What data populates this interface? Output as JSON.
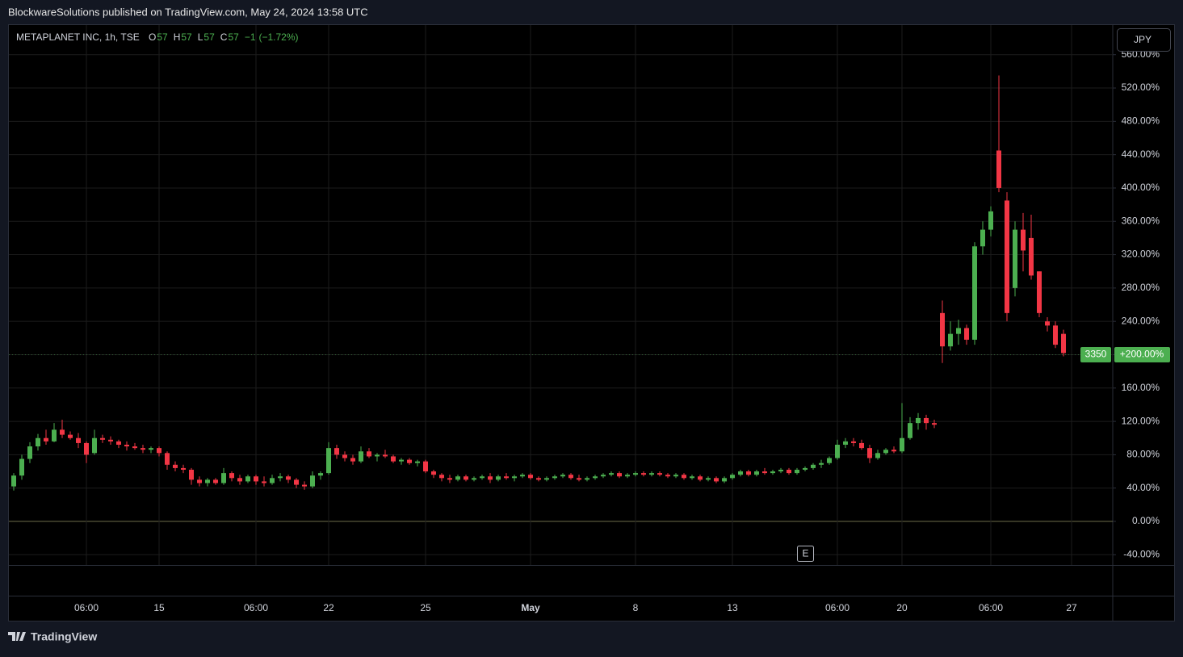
{
  "header": {
    "publisher": "BlockwareSolutions published on TradingView.com, May 24, 2024 13:58 UTC"
  },
  "chart_data": {
    "type": "candlestick",
    "symbol": "METAPLANET INC, 1h, TSE",
    "ohlc_legend": [
      {
        "label": "O",
        "value": 57
      },
      {
        "label": "H",
        "value": 57
      },
      {
        "label": "L",
        "value": 57
      },
      {
        "label": "C",
        "value": 57
      }
    ],
    "change": {
      "value": -1,
      "label": "−1"
    },
    "change_pct": {
      "value": -1.72,
      "label": "(−1.72%)"
    },
    "currency": "JPY",
    "earnings_marker": "E",
    "last_price": 3350,
    "last_change": {
      "value": 200,
      "label": "+200.00%"
    },
    "up_color": "#4caf50",
    "down_color": "#f23645",
    "grid": true,
    "ylim": [
      -52,
      567
    ],
    "yticks": [
      {
        "value": -40,
        "label": "-40.00%"
      },
      {
        "value": 0,
        "label": "0.00%"
      },
      {
        "value": 40,
        "label": "40.00%"
      },
      {
        "value": 80,
        "label": "80.00%"
      },
      {
        "value": 120,
        "label": "120.00%"
      },
      {
        "value": 160,
        "label": "160.00%"
      },
      {
        "value": 200,
        "label": "200.00%"
      },
      {
        "value": 240,
        "label": "240.00%"
      },
      {
        "value": 280,
        "label": "280.00%"
      },
      {
        "value": 320,
        "label": "320.00%"
      },
      {
        "value": 360,
        "label": "360.00%"
      },
      {
        "value": 400,
        "label": "400.00%"
      },
      {
        "value": 440,
        "label": "440.00%"
      },
      {
        "value": 480,
        "label": "480.00%"
      },
      {
        "value": 520,
        "label": "520.00%"
      },
      {
        "value": 560,
        "label": "560.00%"
      }
    ],
    "categories": [
      null,
      null,
      null,
      null,
      null,
      null,
      null,
      null,
      null,
      "06:00",
      null,
      null,
      null,
      null,
      null,
      null,
      null,
      null,
      "15",
      null,
      null,
      null,
      null,
      null,
      null,
      null,
      null,
      null,
      null,
      null,
      "06:00",
      null,
      null,
      null,
      null,
      null,
      null,
      null,
      null,
      "22",
      null,
      null,
      null,
      null,
      null,
      null,
      null,
      null,
      null,
      null,
      null,
      "25",
      null,
      null,
      null,
      null,
      null,
      null,
      null,
      null,
      null,
      null,
      null,
      null,
      "May",
      null,
      null,
      null,
      null,
      null,
      null,
      null,
      null,
      null,
      null,
      null,
      null,
      "8",
      null,
      null,
      null,
      null,
      null,
      null,
      null,
      null,
      null,
      null,
      null,
      "13",
      null,
      null,
      null,
      null,
      null,
      null,
      null,
      null,
      null,
      null,
      null,
      null,
      "06:00",
      null,
      null,
      null,
      null,
      null,
      null,
      null,
      "20",
      null,
      null,
      null,
      null,
      null,
      null,
      null,
      null,
      null,
      null,
      "06:00",
      null,
      null,
      null,
      null,
      null,
      null,
      null,
      null,
      null,
      "27"
    ],
    "ohlc": [
      [
        42,
        58,
        37,
        55
      ],
      [
        55,
        80,
        50,
        75
      ],
      [
        75,
        95,
        70,
        90
      ],
      [
        90,
        105,
        85,
        100
      ],
      [
        100,
        110,
        92,
        96
      ],
      [
        96,
        118,
        95,
        110
      ],
      [
        110,
        122,
        100,
        104
      ],
      [
        104,
        108,
        98,
        100
      ],
      [
        100,
        106,
        88,
        94
      ],
      [
        94,
        96,
        70,
        80
      ],
      [
        82,
        110,
        80,
        100
      ],
      [
        100,
        104,
        94,
        98
      ],
      [
        98,
        102,
        92,
        96
      ],
      [
        96,
        98,
        88,
        92
      ],
      [
        92,
        96,
        85,
        90
      ],
      [
        90,
        94,
        86,
        88
      ],
      [
        88,
        92,
        82,
        86
      ],
      [
        86,
        90,
        82,
        88
      ],
      [
        88,
        90,
        78,
        82
      ],
      [
        82,
        84,
        62,
        68
      ],
      [
        68,
        72,
        60,
        64
      ],
      [
        64,
        68,
        58,
        62
      ],
      [
        62,
        64,
        44,
        50
      ],
      [
        50,
        54,
        42,
        46
      ],
      [
        46,
        52,
        42,
        50
      ],
      [
        50,
        52,
        44,
        46
      ],
      [
        46,
        64,
        44,
        58
      ],
      [
        58,
        60,
        48,
        52
      ],
      [
        52,
        56,
        44,
        48
      ],
      [
        48,
        56,
        46,
        54
      ],
      [
        54,
        56,
        44,
        48
      ],
      [
        48,
        54,
        42,
        46
      ],
      [
        46,
        56,
        44,
        52
      ],
      [
        52,
        58,
        48,
        54
      ],
      [
        54,
        56,
        46,
        50
      ],
      [
        50,
        52,
        40,
        44
      ],
      [
        44,
        48,
        38,
        42
      ],
      [
        42,
        60,
        40,
        55
      ],
      [
        55,
        60,
        50,
        58
      ],
      [
        58,
        95,
        56,
        88
      ],
      [
        88,
        92,
        75,
        80
      ],
      [
        80,
        84,
        72,
        76
      ],
      [
        76,
        80,
        68,
        72
      ],
      [
        72,
        90,
        70,
        84
      ],
      [
        84,
        88,
        76,
        78
      ],
      [
        78,
        82,
        72,
        80
      ],
      [
        80,
        86,
        76,
        78
      ],
      [
        78,
        80,
        70,
        72
      ],
      [
        72,
        76,
        68,
        74
      ],
      [
        74,
        76,
        68,
        70
      ],
      [
        70,
        74,
        66,
        72
      ],
      [
        72,
        74,
        58,
        60
      ],
      [
        60,
        62,
        52,
        56
      ],
      [
        56,
        58,
        48,
        52
      ],
      [
        52,
        56,
        46,
        50
      ],
      [
        50,
        56,
        48,
        54
      ],
      [
        54,
        56,
        48,
        50
      ],
      [
        50,
        54,
        48,
        52
      ],
      [
        52,
        56,
        50,
        54
      ],
      [
        54,
        58,
        46,
        50
      ],
      [
        50,
        56,
        48,
        54
      ],
      [
        54,
        58,
        50,
        52
      ],
      [
        52,
        56,
        48,
        54
      ],
      [
        54,
        58,
        52,
        56
      ],
      [
        56,
        58,
        50,
        52
      ],
      [
        52,
        54,
        48,
        50
      ],
      [
        50,
        54,
        48,
        52
      ],
      [
        52,
        56,
        50,
        54
      ],
      [
        54,
        58,
        52,
        56
      ],
      [
        56,
        58,
        50,
        52
      ],
      [
        52,
        56,
        48,
        50
      ],
      [
        50,
        54,
        48,
        52
      ],
      [
        52,
        56,
        50,
        54
      ],
      [
        54,
        58,
        52,
        56
      ],
      [
        56,
        60,
        54,
        58
      ],
      [
        58,
        60,
        52,
        54
      ],
      [
        54,
        58,
        52,
        56
      ],
      [
        56,
        60,
        54,
        58
      ],
      [
        58,
        60,
        54,
        56
      ],
      [
        56,
        60,
        54,
        58
      ],
      [
        58,
        60,
        54,
        56
      ],
      [
        56,
        58,
        52,
        54
      ],
      [
        54,
        58,
        52,
        56
      ],
      [
        56,
        58,
        50,
        52
      ],
      [
        52,
        56,
        50,
        54
      ],
      [
        54,
        56,
        48,
        50
      ],
      [
        50,
        54,
        48,
        52
      ],
      [
        52,
        54,
        46,
        48
      ],
      [
        48,
        54,
        46,
        52
      ],
      [
        52,
        58,
        50,
        56
      ],
      [
        56,
        62,
        54,
        60
      ],
      [
        60,
        62,
        54,
        56
      ],
      [
        56,
        62,
        54,
        60
      ],
      [
        60,
        64,
        56,
        58
      ],
      [
        58,
        62,
        56,
        60
      ],
      [
        60,
        64,
        58,
        62
      ],
      [
        62,
        64,
        56,
        58
      ],
      [
        58,
        64,
        56,
        62
      ],
      [
        62,
        66,
        60,
        64
      ],
      [
        64,
        70,
        62,
        68
      ],
      [
        68,
        74,
        64,
        70
      ],
      [
        70,
        78,
        68,
        76
      ],
      [
        76,
        98,
        74,
        92
      ],
      [
        92,
        100,
        88,
        96
      ],
      [
        96,
        100,
        90,
        94
      ],
      [
        94,
        98,
        86,
        88
      ],
      [
        88,
        92,
        70,
        76
      ],
      [
        76,
        86,
        74,
        82
      ],
      [
        82,
        88,
        80,
        86
      ],
      [
        86,
        90,
        82,
        84
      ],
      [
        84,
        142,
        82,
        100
      ],
      [
        100,
        125,
        98,
        118
      ],
      [
        118,
        130,
        110,
        124
      ],
      [
        124,
        128,
        110,
        118
      ],
      [
        118,
        122,
        112,
        116
      ],
      [
        250,
        265,
        190,
        210
      ],
      [
        210,
        240,
        205,
        225
      ],
      [
        225,
        242,
        212,
        232
      ],
      [
        232,
        236,
        212,
        218
      ],
      [
        218,
        335,
        212,
        330
      ],
      [
        330,
        360,
        320,
        350
      ],
      [
        350,
        378,
        342,
        372
      ],
      [
        445,
        535,
        395,
        400
      ],
      [
        385,
        395,
        240,
        250
      ],
      [
        280,
        360,
        270,
        350
      ],
      [
        350,
        370,
        300,
        325
      ],
      [
        340,
        368,
        290,
        295
      ],
      [
        300,
        300,
        245,
        250
      ],
      [
        240,
        245,
        228,
        235
      ],
      [
        235,
        240,
        208,
        212
      ],
      [
        225,
        230,
        198,
        202
      ],
      null
    ]
  }
}
